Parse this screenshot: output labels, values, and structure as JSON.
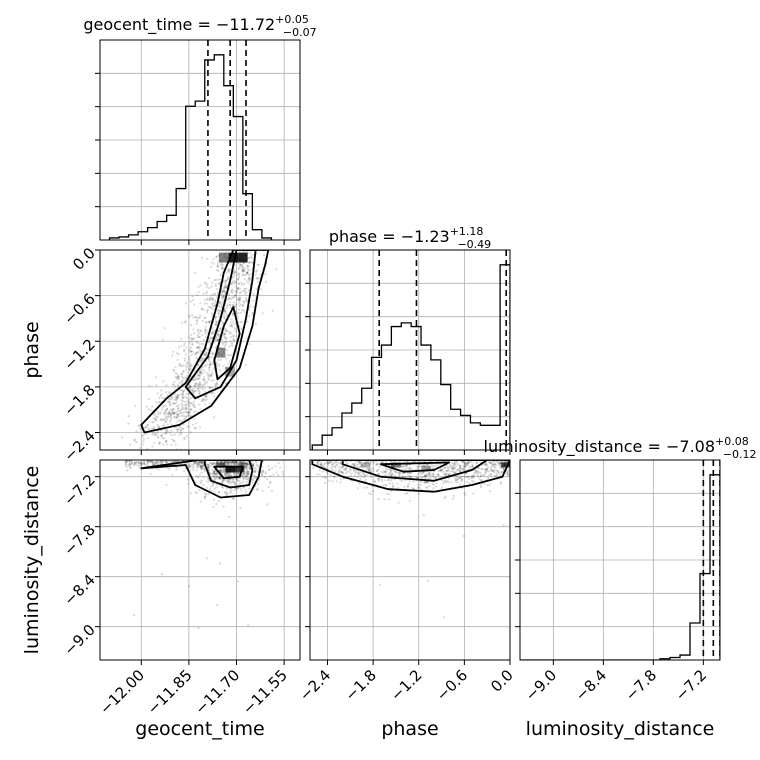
{
  "chart_data": {
    "type": "corner",
    "parameters": [
      "geocent_time",
      "phase",
      "luminosity_distance"
    ],
    "axis_labels": {
      "geocent_time": "geocent_time",
      "phase": "phase",
      "luminosity_distance": "luminosity_distance"
    },
    "ranges": {
      "geocent_time": [
        -12.13,
        -11.5
      ],
      "phase": [
        -2.63,
        0.0
      ],
      "luminosity_distance": [
        -9.4,
        -7.0
      ]
    },
    "ticks": {
      "geocent_time": [
        -12.0,
        -11.85,
        -11.7,
        -11.55
      ],
      "phase": [
        -2.4,
        -1.8,
        -1.2,
        -0.6,
        0.0
      ],
      "luminosity_distance": [
        -9.0,
        -8.4,
        -7.8,
        -7.2
      ]
    },
    "tick_labels": {
      "geocent_time": [
        "−12.00",
        "−11.85",
        "−11.70",
        "−11.55"
      ],
      "phase": [
        "−2.4",
        "−1.8",
        "−1.2",
        "−0.6",
        "0.0"
      ],
      "luminosity_distance": [
        "−9.0",
        "−8.4",
        "−7.8",
        "−7.2"
      ]
    },
    "titles": {
      "geocent_time": {
        "prefix": "geocent_time = −11.72",
        "sup": "+0.05",
        "sub": "−0.07"
      },
      "phase": {
        "prefix": "phase = −1.23",
        "sup": "+1.18",
        "sub": "−0.49"
      },
      "luminosity_distance": {
        "prefix": "luminosity_distance = −7.08",
        "sup": "+0.08",
        "sub": "−0.12"
      }
    },
    "quantiles": {
      "geocent_time": [
        -11.79,
        -11.72,
        -11.67
      ],
      "phase": [
        -1.72,
        -1.23,
        -0.05
      ],
      "luminosity_distance": [
        -7.2,
        -7.08,
        -7.0
      ]
    },
    "histograms": {
      "geocent_time": {
        "edges": [
          -12.1,
          -12.07,
          -12.04,
          -12.01,
          -11.98,
          -11.95,
          -11.92,
          -11.89,
          -11.86,
          -11.83,
          -11.8,
          -11.77,
          -11.74,
          -11.71,
          -11.68,
          -11.65,
          -11.62,
          -11.59
        ],
        "counts": [
          2,
          3,
          5,
          8,
          12,
          18,
          24,
          50,
          130,
          135,
          175,
          180,
          150,
          120,
          45,
          10,
          2
        ]
      },
      "phase": {
        "edges": [
          -2.6,
          -2.47,
          -2.34,
          -2.21,
          -2.08,
          -1.95,
          -1.82,
          -1.69,
          -1.56,
          -1.43,
          -1.3,
          -1.17,
          -1.04,
          -0.91,
          -0.78,
          -0.65,
          -0.52,
          -0.39,
          -0.26,
          -0.13,
          0.0
        ],
        "counts": [
          4,
          12,
          18,
          30,
          38,
          50,
          75,
          85,
          100,
          103,
          100,
          85,
          73,
          53,
          33,
          28,
          22,
          20,
          20,
          150
        ]
      },
      "luminosity_distance": {
        "edges": [
          -9.4,
          -9.28,
          -9.16,
          -9.04,
          -8.92,
          -8.8,
          -8.68,
          -8.56,
          -8.44,
          -8.32,
          -8.2,
          -8.08,
          -7.96,
          -7.84,
          -7.72,
          -7.6,
          -7.48,
          -7.36,
          -7.24,
          -7.12,
          -7.0
        ],
        "counts": [
          0,
          0,
          0,
          0,
          0,
          0,
          0,
          0,
          0,
          0,
          0,
          0,
          0,
          0,
          1,
          2,
          4,
          30,
          70,
          150
        ]
      }
    },
    "contours": {
      "phase_vs_geocent_time": [
        [
          [
            -11.99,
            -2.4
          ],
          [
            -11.88,
            -2.3
          ],
          [
            -11.78,
            -2.05
          ],
          [
            -11.69,
            -1.55
          ],
          [
            -11.65,
            -1.0
          ],
          [
            -11.63,
            -0.5
          ],
          [
            -11.61,
            -0.2
          ],
          [
            -11.6,
            0.0
          ],
          [
            -11.71,
            0.0
          ],
          [
            -11.74,
            -0.3
          ],
          [
            -11.76,
            -0.7
          ],
          [
            -11.8,
            -1.3
          ],
          [
            -11.86,
            -1.75
          ],
          [
            -11.92,
            -1.95
          ],
          [
            -12.0,
            -2.3
          ],
          [
            -11.99,
            -2.4
          ]
        ],
        [
          [
            -11.83,
            -1.95
          ],
          [
            -11.75,
            -1.8
          ],
          [
            -11.7,
            -1.45
          ],
          [
            -11.67,
            -0.9
          ],
          [
            -11.65,
            -0.4
          ],
          [
            -11.64,
            0.0
          ],
          [
            -11.7,
            0.0
          ],
          [
            -11.72,
            -0.4
          ],
          [
            -11.75,
            -0.9
          ],
          [
            -11.79,
            -1.4
          ],
          [
            -11.86,
            -1.8
          ],
          [
            -11.83,
            -1.95
          ]
        ],
        [
          [
            -11.76,
            -1.7
          ],
          [
            -11.72,
            -1.55
          ],
          [
            -11.69,
            -1.1
          ],
          [
            -11.71,
            -0.75
          ],
          [
            -11.74,
            -1.0
          ],
          [
            -11.77,
            -1.45
          ],
          [
            -11.76,
            -1.7
          ]
        ]
      ],
      "luminosity_distance_vs_geocent_time": [
        [
          [
            -12.0,
            -7.1
          ],
          [
            -11.86,
            -7.06
          ],
          [
            -11.83,
            -7.3
          ],
          [
            -11.75,
            -7.45
          ],
          [
            -11.66,
            -7.42
          ],
          [
            -11.63,
            -7.2
          ],
          [
            -11.62,
            -7.0
          ],
          [
            -11.82,
            -7.0
          ],
          [
            -12.0,
            -7.1
          ]
        ],
        [
          [
            -11.8,
            -7.05
          ],
          [
            -11.78,
            -7.25
          ],
          [
            -11.72,
            -7.33
          ],
          [
            -11.66,
            -7.3
          ],
          [
            -11.65,
            -7.12
          ],
          [
            -11.66,
            -7.0
          ],
          [
            -11.8,
            -7.0
          ],
          [
            -11.8,
            -7.05
          ]
        ],
        [
          [
            -11.77,
            -7.08
          ],
          [
            -11.74,
            -7.22
          ],
          [
            -11.69,
            -7.2
          ],
          [
            -11.68,
            -7.08
          ],
          [
            -11.77,
            -7.08
          ]
        ]
      ],
      "luminosity_distance_vs_phase": [
        [
          [
            -2.6,
            -7.05
          ],
          [
            -2.2,
            -7.2
          ],
          [
            -1.6,
            -7.35
          ],
          [
            -1.0,
            -7.38
          ],
          [
            -0.5,
            -7.3
          ],
          [
            -0.1,
            -7.2
          ],
          [
            0.0,
            -7.0
          ],
          [
            -2.6,
            -7.0
          ],
          [
            -2.6,
            -7.05
          ]
        ],
        [
          [
            -2.2,
            -7.05
          ],
          [
            -1.7,
            -7.2
          ],
          [
            -1.0,
            -7.25
          ],
          [
            -0.5,
            -7.12
          ],
          [
            -0.3,
            -7.0
          ],
          [
            -2.2,
            -7.0
          ],
          [
            -2.2,
            -7.05
          ]
        ],
        [
          [
            -1.7,
            -7.05
          ],
          [
            -1.4,
            -7.14
          ],
          [
            -1.0,
            -7.12
          ],
          [
            -0.8,
            -7.03
          ],
          [
            -1.7,
            -7.05
          ]
        ]
      ]
    },
    "scatter_seed": 20240611,
    "scatter_counts": {
      "phase_vs_geocent_time": 1400,
      "luminosity_distance_vs_geocent_time": 900,
      "luminosity_distance_vs_phase": 900
    },
    "grid": true,
    "colors": {
      "line": "#000000",
      "grid": "#b0b0b0",
      "points": "#000000",
      "density": "#000000"
    }
  }
}
